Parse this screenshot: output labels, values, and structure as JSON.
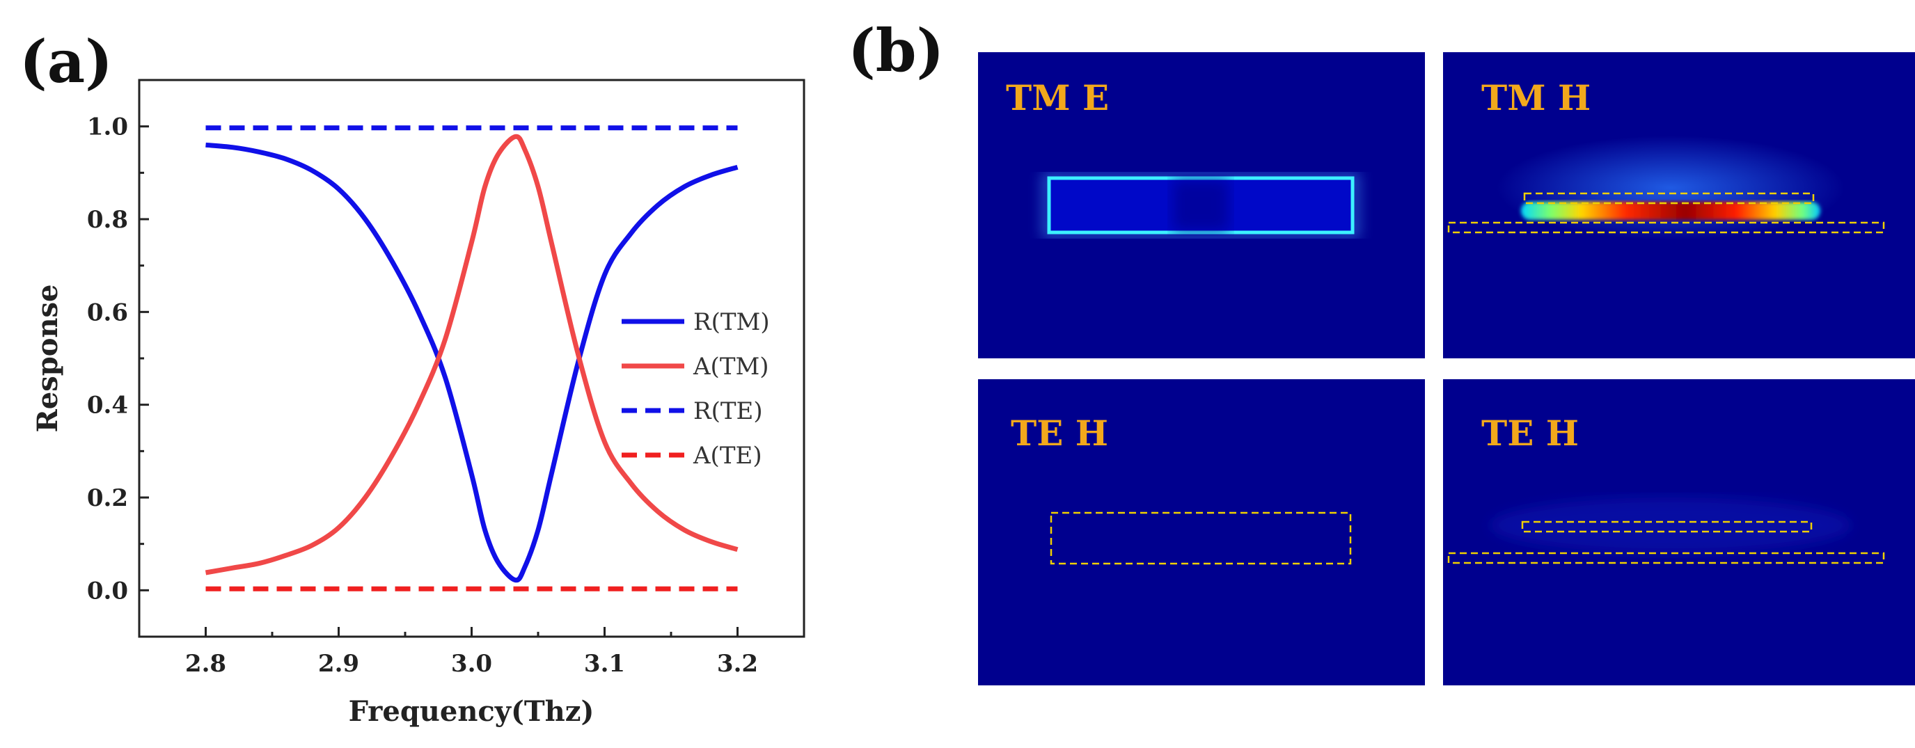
{
  "panel_labels": {
    "a": "(a)",
    "b": "(b)"
  },
  "chart_data": {
    "type": "line",
    "xlabel": "Frequency(Thz)",
    "ylabel": "Response",
    "xlim": [
      2.75,
      3.25
    ],
    "ylim": [
      -0.1,
      1.1
    ],
    "xticks": [
      2.8,
      2.9,
      3.0,
      3.1,
      3.2
    ],
    "xtick_labels": [
      "2.8",
      "2.9",
      "3.0",
      "3.1",
      "3.2"
    ],
    "yticks": [
      0.0,
      0.2,
      0.4,
      0.6,
      0.8,
      1.0
    ],
    "ytick_labels": [
      "0.0",
      "0.2",
      "0.4",
      "0.6",
      "0.8",
      "1.0"
    ],
    "legend_position": "center-right",
    "series": [
      {
        "name": "R(TM)",
        "color": "#1010e8",
        "style": "solid",
        "x": [
          2.8,
          2.82,
          2.84,
          2.86,
          2.88,
          2.9,
          2.92,
          2.94,
          2.96,
          2.98,
          3.0,
          3.01,
          3.02,
          3.033,
          3.04,
          3.05,
          3.06,
          3.08,
          3.1,
          3.12,
          3.14,
          3.16,
          3.18,
          3.2
        ],
        "y": [
          0.96,
          0.955,
          0.945,
          0.93,
          0.905,
          0.865,
          0.8,
          0.71,
          0.6,
          0.46,
          0.25,
          0.13,
          0.06,
          0.022,
          0.05,
          0.13,
          0.25,
          0.49,
          0.68,
          0.77,
          0.83,
          0.87,
          0.895,
          0.912
        ]
      },
      {
        "name": "A(TM)",
        "color": "#f04848",
        "style": "solid",
        "x": [
          2.8,
          2.82,
          2.84,
          2.86,
          2.88,
          2.9,
          2.92,
          2.94,
          2.96,
          2.98,
          3.0,
          3.01,
          3.02,
          3.033,
          3.04,
          3.05,
          3.06,
          3.08,
          3.1,
          3.12,
          3.14,
          3.16,
          3.18,
          3.2
        ],
        "y": [
          0.038,
          0.048,
          0.058,
          0.075,
          0.097,
          0.135,
          0.2,
          0.29,
          0.4,
          0.54,
          0.75,
          0.87,
          0.94,
          0.978,
          0.95,
          0.87,
          0.75,
          0.51,
          0.32,
          0.23,
          0.17,
          0.13,
          0.105,
          0.088
        ]
      },
      {
        "name": "R(TE)",
        "color": "#1010e8",
        "style": "dashed",
        "x": [
          2.8,
          3.2
        ],
        "y": [
          0.997,
          0.997
        ]
      },
      {
        "name": "A(TE)",
        "color": "#f02020",
        "style": "dashed",
        "x": [
          2.8,
          3.2
        ],
        "y": [
          0.003,
          0.003
        ]
      }
    ]
  },
  "field_maps": [
    {
      "label": "TM E"
    },
    {
      "label": "TM H"
    },
    {
      "label": "TE H"
    },
    {
      "label": "TE H"
    }
  ]
}
